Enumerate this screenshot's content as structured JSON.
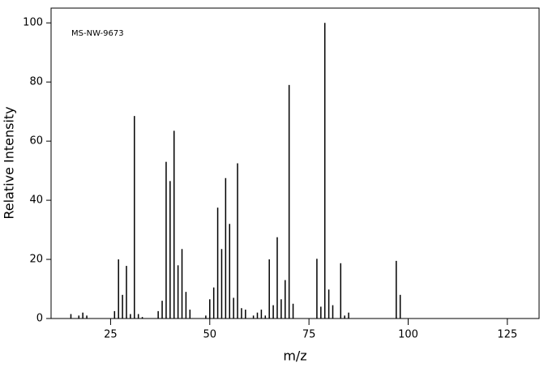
{
  "chart_data": {
    "type": "bar",
    "annotation": "MS-NW-9673",
    "x_label": "m/z",
    "y_label": "Relative Intensity",
    "color": "#000000",
    "x": [
      15,
      17,
      18,
      19,
      26,
      27,
      28,
      29,
      30,
      31,
      32,
      33,
      37,
      38,
      39,
      40,
      41,
      42,
      43,
      44,
      45,
      49,
      50,
      51,
      52,
      53,
      54,
      55,
      56,
      57,
      58,
      59,
      61,
      62,
      63,
      64,
      65,
      66,
      67,
      68,
      69,
      70,
      71,
      77,
      78,
      79,
      80,
      81,
      83,
      84,
      85,
      97,
      98
    ],
    "values": [
      1.5,
      1,
      2,
      1,
      2.5,
      20,
      8,
      17.8,
      1.5,
      68.5,
      1.5,
      0.5,
      2.5,
      6,
      53,
      46.5,
      63.5,
      18,
      23.5,
      9,
      3,
      1,
      6.5,
      10.5,
      37.5,
      23.5,
      47.5,
      32,
      7,
      52.5,
      3.5,
      3,
      1,
      2,
      3,
      1,
      20,
      4.5,
      27.5,
      6.5,
      13,
      79,
      5,
      20.2,
      4,
      100,
      9.8,
      4.5,
      18.7,
      1,
      2,
      19.5,
      8
    ],
    "xlim": [
      10,
      133
    ],
    "ylim": [
      0,
      105
    ],
    "xticks": [
      25,
      50,
      75,
      100,
      125
    ],
    "yticks": [
      0,
      20,
      40,
      60,
      80,
      100
    ]
  }
}
